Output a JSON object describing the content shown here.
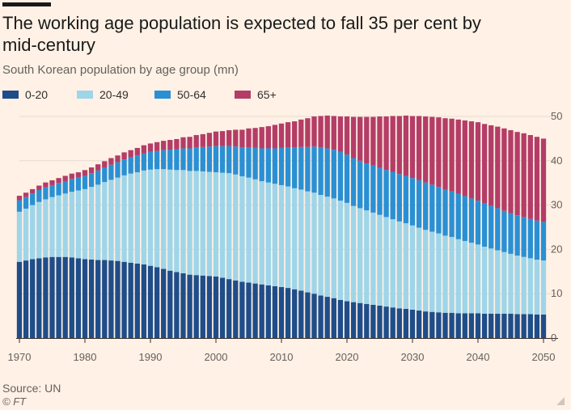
{
  "header": {
    "title": "The working age population is expected to fall 35 per cent by mid-century",
    "subtitle": "South Korean population by age group (mn)"
  },
  "legend": [
    {
      "label": "0-20",
      "color": "#1f4d89"
    },
    {
      "label": "20-49",
      "color": "#9fd5e9"
    },
    {
      "label": "50-64",
      "color": "#2a90d4"
    },
    {
      "label": "65+",
      "color": "#b43d67"
    }
  ],
  "footer": {
    "source": "Source: UN",
    "credit": "© FT"
  },
  "chart_data": {
    "type": "bar",
    "stacked": true,
    "title": "South Korean population by age group (mn)",
    "xlabel": "",
    "ylabel": "",
    "ylim": [
      0,
      50
    ],
    "yticks": [
      0,
      10,
      20,
      30,
      40,
      50
    ],
    "xticks": [
      1970,
      1980,
      1990,
      2000,
      2010,
      2020,
      2030,
      2040,
      2050
    ],
    "y_axis_side": "right",
    "grid": true,
    "x": [
      1970,
      1971,
      1972,
      1973,
      1974,
      1975,
      1976,
      1977,
      1978,
      1979,
      1980,
      1981,
      1982,
      1983,
      1984,
      1985,
      1986,
      1987,
      1988,
      1989,
      1990,
      1991,
      1992,
      1993,
      1994,
      1995,
      1996,
      1997,
      1998,
      1999,
      2000,
      2001,
      2002,
      2003,
      2004,
      2005,
      2006,
      2007,
      2008,
      2009,
      2010,
      2011,
      2012,
      2013,
      2014,
      2015,
      2016,
      2017,
      2018,
      2019,
      2020,
      2021,
      2022,
      2023,
      2024,
      2025,
      2026,
      2027,
      2028,
      2029,
      2030,
      2031,
      2032,
      2033,
      2034,
      2035,
      2036,
      2037,
      2038,
      2039,
      2040,
      2041,
      2042,
      2043,
      2044,
      2045,
      2046,
      2047,
      2048,
      2049,
      2050
    ],
    "series": [
      {
        "name": "0-20",
        "color": "#1f4d89",
        "values": [
          17.2,
          17.5,
          17.8,
          18.0,
          18.2,
          18.3,
          18.3,
          18.3,
          18.2,
          18.0,
          17.8,
          17.7,
          17.6,
          17.6,
          17.5,
          17.4,
          17.2,
          17.0,
          16.8,
          16.6,
          16.3,
          16.0,
          15.6,
          15.2,
          14.9,
          14.6,
          14.3,
          14.2,
          14.1,
          14.0,
          13.9,
          13.6,
          13.3,
          13.0,
          12.7,
          12.5,
          12.3,
          12.1,
          11.9,
          11.7,
          11.5,
          11.3,
          11.0,
          10.7,
          10.3,
          10.0,
          9.6,
          9.3,
          9.0,
          8.6,
          8.3,
          8.1,
          7.9,
          7.7,
          7.5,
          7.3,
          7.1,
          6.9,
          6.7,
          6.6,
          6.4,
          6.2,
          6.0,
          5.9,
          5.8,
          5.7,
          5.7,
          5.6,
          5.6,
          5.6,
          5.6,
          5.5,
          5.5,
          5.5,
          5.5,
          5.5,
          5.4,
          5.4,
          5.4,
          5.3,
          5.3
        ]
      },
      {
        "name": "20-49",
        "color": "#9fd5e9",
        "values": [
          11.3,
          11.7,
          12.2,
          12.7,
          13.1,
          13.5,
          13.9,
          14.3,
          14.8,
          15.3,
          15.8,
          16.4,
          17.0,
          17.6,
          18.2,
          18.8,
          19.5,
          20.1,
          20.6,
          21.2,
          21.7,
          22.1,
          22.5,
          22.8,
          23.0,
          23.3,
          23.4,
          23.5,
          23.5,
          23.5,
          23.5,
          23.7,
          23.9,
          23.9,
          23.8,
          23.7,
          23.5,
          23.3,
          23.2,
          23.1,
          23.0,
          22.9,
          22.8,
          22.8,
          22.8,
          22.8,
          22.7,
          22.6,
          22.5,
          22.4,
          22.2,
          21.7,
          21.4,
          21.1,
          20.8,
          20.5,
          20.2,
          19.9,
          19.6,
          19.3,
          19.0,
          18.7,
          18.4,
          18.1,
          17.8,
          17.4,
          17.1,
          16.7,
          16.3,
          15.9,
          15.5,
          15.1,
          14.7,
          14.3,
          13.9,
          13.5,
          13.2,
          12.9,
          12.6,
          12.4,
          12.2
        ]
      },
      {
        "name": "50-64",
        "color": "#2a90d4",
        "values": [
          2.6,
          2.6,
          2.6,
          2.7,
          2.7,
          2.7,
          2.8,
          2.8,
          2.9,
          2.9,
          3.0,
          3.1,
          3.2,
          3.3,
          3.4,
          3.5,
          3.6,
          3.7,
          3.8,
          3.9,
          4.0,
          4.1,
          4.3,
          4.5,
          4.7,
          4.9,
          5.1,
          5.3,
          5.5,
          5.7,
          5.9,
          6.0,
          6.1,
          6.3,
          6.5,
          6.8,
          7.1,
          7.4,
          7.7,
          8.0,
          8.4,
          8.8,
          9.2,
          9.6,
          10.0,
          10.4,
          10.7,
          10.9,
          11.0,
          11.0,
          10.9,
          10.8,
          10.7,
          10.6,
          10.6,
          10.6,
          10.6,
          10.7,
          10.7,
          10.7,
          10.7,
          10.7,
          10.7,
          10.6,
          10.5,
          10.4,
          10.3,
          10.2,
          10.1,
          10.0,
          9.9,
          9.8,
          9.6,
          9.5,
          9.3,
          9.2,
          9.1,
          9.0,
          8.9,
          8.8,
          8.7
        ]
      },
      {
        "name": "65+",
        "color": "#b43d67",
        "values": [
          1.0,
          1.0,
          1.0,
          1.0,
          1.1,
          1.1,
          1.1,
          1.2,
          1.2,
          1.2,
          1.3,
          1.3,
          1.4,
          1.4,
          1.5,
          1.5,
          1.6,
          1.6,
          1.7,
          1.8,
          1.9,
          2.0,
          2.1,
          2.2,
          2.3,
          2.5,
          2.6,
          2.8,
          2.9,
          3.1,
          3.3,
          3.4,
          3.6,
          3.8,
          4.0,
          4.3,
          4.5,
          4.8,
          5.0,
          5.3,
          5.5,
          5.7,
          5.9,
          6.2,
          6.5,
          6.8,
          7.1,
          7.4,
          7.6,
          8.0,
          8.6,
          9.3,
          9.9,
          10.5,
          11.0,
          11.6,
          12.1,
          12.6,
          13.1,
          13.6,
          14.0,
          14.5,
          14.9,
          15.3,
          15.7,
          16.1,
          16.4,
          16.8,
          17.1,
          17.4,
          17.7,
          17.9,
          18.2,
          18.4,
          18.6,
          18.7,
          18.8,
          18.9,
          18.9,
          18.9,
          18.8
        ]
      }
    ]
  }
}
